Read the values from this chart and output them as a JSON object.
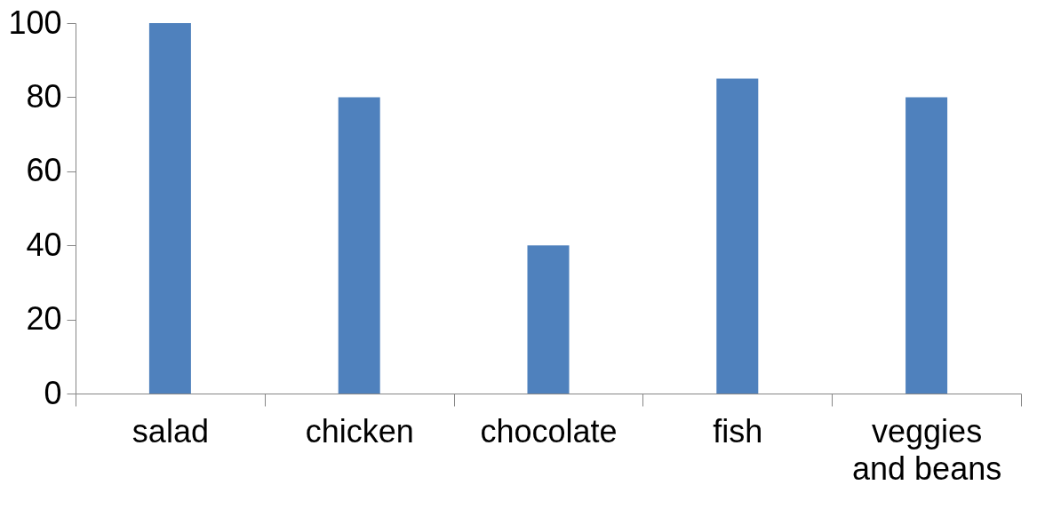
{
  "chart_data": {
    "type": "bar",
    "categories": [
      "salad",
      "chicken",
      "chocolate",
      "fish",
      "veggies and beans"
    ],
    "values": [
      100,
      80,
      40,
      85,
      80
    ],
    "color": "#4f81bd",
    "ylim": [
      0,
      100
    ],
    "yticks": [
      0,
      20,
      40,
      60,
      80,
      100
    ],
    "grid": false
  }
}
